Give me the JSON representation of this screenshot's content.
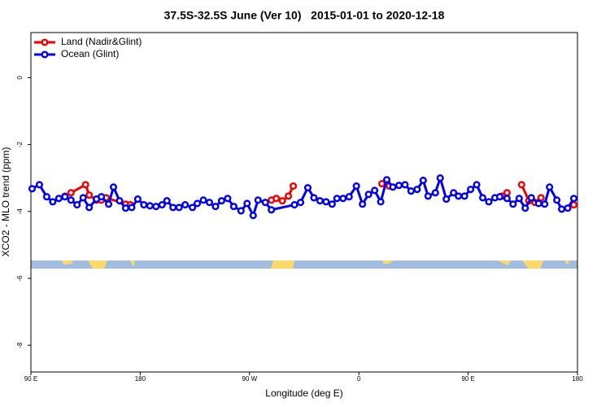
{
  "chart_data": {
    "type": "line",
    "title": "37.5S-32.5S June (Ver 10)   2015-01-01 to 2020-12-18",
    "x_label": "Longitude (deg E)",
    "y_label": "XCO2 - MLO trend (ppm)",
    "xlim": [
      90,
      540
    ],
    "xticks": [
      {
        "value": 90,
        "label": "90 E"
      },
      180,
      {
        "value": 270,
        "label": "90 W"
      },
      {
        "value": 360,
        "label": "0"
      },
      {
        "value": 450,
        "label": "90 E"
      },
      {
        "value": 540,
        "label": "180"
      }
    ],
    "ylim": [
      -8.8,
      1.35
    ],
    "yticks": [
      0,
      -2,
      -4,
      -6,
      -8
    ],
    "legend": "top-left",
    "series": [
      {
        "name": "Land (Nadir&Glint)",
        "color": "#ee0000",
        "x": [
          118,
          123,
          135,
          138,
          144,
          148,
          152,
          168,
          172,
          230,
          288,
          292,
          297,
          302,
          306,
          340,
          379,
          385,
          430,
          478,
          482,
          488,
          494,
          500,
          505,
          510,
          520,
          537
        ],
        "values": [
          -3.54,
          -3.44,
          -3.2,
          -3.51,
          -3.66,
          -3.66,
          -3.59,
          -3.78,
          -3.8,
          null,
          -3.66,
          -3.61,
          -3.68,
          -3.54,
          -3.24,
          null,
          -3.17,
          -3.24,
          null,
          -3.54,
          -3.44,
          null,
          -3.2,
          -3.68,
          -3.73,
          -3.59,
          null,
          -3.8
        ]
      },
      {
        "name": "Ocean (Glint)",
        "color": "#0000ee",
        "x": [
          91,
          97,
          103,
          108,
          113,
          118,
          123,
          128,
          133,
          138,
          144,
          148,
          154,
          158,
          163,
          168,
          173,
          178,
          183,
          188,
          193,
          198,
          202,
          207,
          212,
          217,
          223,
          227,
          232,
          237,
          242,
          247,
          252,
          257,
          263,
          268,
          273,
          277,
          283,
          288,
          307,
          312,
          318,
          323,
          328,
          333,
          338,
          342,
          347,
          352,
          358,
          363,
          368,
          373,
          378,
          383,
          388,
          393,
          398,
          403,
          408,
          413,
          417,
          423,
          427,
          432,
          438,
          442,
          447,
          452,
          457,
          462,
          467,
          472,
          476,
          482,
          487,
          492,
          497,
          502,
          508,
          513,
          517,
          523,
          527,
          532,
          537
        ],
        "values": [
          -3.32,
          -3.2,
          -3.56,
          -3.71,
          -3.61,
          -3.56,
          -3.66,
          -3.8,
          -3.59,
          -3.88,
          -3.63,
          -3.56,
          -3.78,
          -3.27,
          -3.68,
          -3.9,
          -3.88,
          -3.63,
          -3.8,
          -3.83,
          -3.85,
          -3.8,
          -3.68,
          -3.88,
          -3.88,
          -3.8,
          -3.88,
          -3.76,
          -3.66,
          -3.73,
          -3.85,
          -3.68,
          -3.61,
          -3.85,
          -3.98,
          -3.76,
          -4.12,
          -3.66,
          -3.73,
          -3.95,
          -3.8,
          -3.73,
          -3.29,
          -3.59,
          -3.68,
          -3.71,
          -3.78,
          -3.61,
          -3.61,
          -3.56,
          -3.24,
          -3.78,
          -3.49,
          -3.37,
          -3.71,
          -3.05,
          -3.27,
          -3.22,
          -3.2,
          -3.39,
          -3.34,
          -3.07,
          -3.54,
          -3.44,
          -3.0,
          -3.63,
          -3.44,
          -3.54,
          -3.54,
          -3.34,
          -3.2,
          -3.59,
          -3.71,
          -3.59,
          -3.56,
          -3.61,
          -3.78,
          -3.61,
          -3.9,
          -3.59,
          -3.76,
          -3.78,
          -3.27,
          -3.66,
          -3.93,
          -3.9,
          -3.61
        ]
      }
    ]
  }
}
